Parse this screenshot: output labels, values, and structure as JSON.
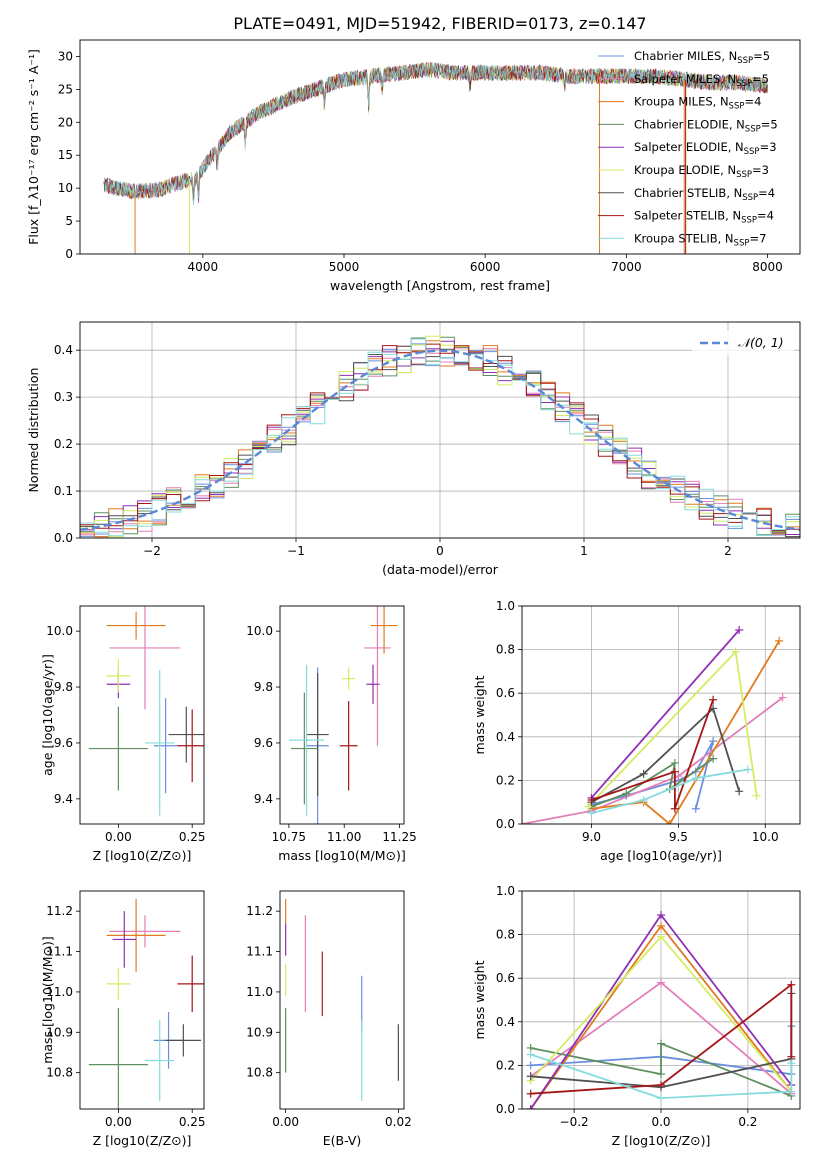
{
  "figure_title": "PLATE=0491, MJD=51942, FIBERID=0173, z=0.147",
  "colors": {
    "Chabrier MILES": "#6a8fdc",
    "Salpeter MILES": "#e37fb8",
    "Kroupa MILES": "#e07b1f",
    "Chabrier ELODIE": "#5f8f5f",
    "Salpeter ELODIE": "#8f2fb5",
    "Kroupa ELODIE": "#d5ec62",
    "Chabrier STELIB": "#505050",
    "Salpeter STELIB": "#a51616",
    "Kroupa STELIB": "#86dcdc"
  },
  "chart_data": [
    {
      "id": "spectrum",
      "type": "line",
      "title": "PLATE=0491, MJD=51942, FIBERID=0173, z=0.147",
      "xlabel": "wavelength [Angstrom, rest frame]",
      "ylabel": "Flux [f_λ10⁻¹⁷ erg cm⁻² s⁻¹ A⁻¹]",
      "xlim": [
        3130,
        8230
      ],
      "ylim": [
        0,
        32.5
      ],
      "xticks": [
        4000,
        5000,
        6000,
        7000,
        8000
      ],
      "yticks": [
        0,
        5,
        10,
        15,
        20,
        25,
        30
      ],
      "grid": false,
      "legend": "top-right",
      "continuum": [
        [
          3300,
          10.5
        ],
        [
          3500,
          9.5
        ],
        [
          3700,
          9.8
        ],
        [
          3850,
          11.0
        ],
        [
          3950,
          11.5
        ],
        [
          4050,
          14.5
        ],
        [
          4200,
          18.5
        ],
        [
          4400,
          21.5
        ],
        [
          4600,
          23.5
        ],
        [
          4800,
          25.0
        ],
        [
          5000,
          26.5
        ],
        [
          5200,
          27.0
        ],
        [
          5400,
          27.5
        ],
        [
          5600,
          28.0
        ],
        [
          5800,
          27.5
        ],
        [
          6000,
          27.5
        ],
        [
          6200,
          27.5
        ],
        [
          6400,
          27.5
        ],
        [
          6600,
          27.0
        ],
        [
          6800,
          27.0
        ],
        [
          7000,
          27.0
        ],
        [
          7200,
          27.0
        ],
        [
          7400,
          26.5
        ],
        [
          7600,
          26.0
        ],
        [
          7800,
          26.0
        ],
        [
          8000,
          25.5
        ]
      ],
      "absorption_lines": [
        [
          3934,
          0.72
        ],
        [
          3969,
          0.72
        ],
        [
          4102,
          0.82
        ],
        [
          4300,
          0.85
        ],
        [
          4861,
          0.9
        ],
        [
          5175,
          0.82
        ],
        [
          5270,
          0.92
        ],
        [
          5893,
          0.92
        ],
        [
          6563,
          0.93
        ]
      ],
      "series": [
        {
          "name": "Chabrier MILES",
          "label": "Chabrier MILES, N",
          "sub": "SSP",
          "suffix": "=5"
        },
        {
          "name": "Salpeter MILES",
          "label": "Salpeter MILES, N",
          "sub": "SSP",
          "suffix": "=5"
        },
        {
          "name": "Kroupa MILES",
          "label": "Kroupa MILES, N",
          "sub": "SSP",
          "suffix": "=4"
        },
        {
          "name": "Chabrier ELODIE",
          "label": "Chabrier ELODIE, N",
          "sub": "SSP",
          "suffix": "=5"
        },
        {
          "name": "Salpeter ELODIE",
          "label": "Salpeter ELODIE, N",
          "sub": "SSP",
          "suffix": "=3"
        },
        {
          "name": "Kroupa ELODIE",
          "label": "Kroupa ELODIE, N",
          "sub": "SSP",
          "suffix": "=3"
        },
        {
          "name": "Chabrier STELIB",
          "label": "Chabrier STELIB, N",
          "sub": "SSP",
          "suffix": "=4"
        },
        {
          "name": "Salpeter STELIB",
          "label": "Salpeter STELIB, N",
          "sub": "SSP",
          "suffix": "=4"
        },
        {
          "name": "Kroupa STELIB",
          "label": "Kroupa STELIB, N",
          "sub": "SSP",
          "suffix": "=7"
        }
      ],
      "drops": [
        {
          "name": "Kroupa MILES",
          "x": 3520
        },
        {
          "name": "Kroupa ELODIE",
          "x": 3905
        },
        {
          "name": "Kroupa MILES",
          "x": 6810
        },
        {
          "name": "Kroupa MILES",
          "x": 7410
        },
        {
          "name": "Salpeter STELIB",
          "x": 7420
        }
      ]
    },
    {
      "id": "residuals",
      "type": "step-histogram",
      "xlabel": "(data-model)/error",
      "ylabel": "Normed distribution",
      "xlim": [
        -2.5,
        2.5
      ],
      "ylim": [
        0,
        0.46
      ],
      "xticks": [
        -2,
        -1,
        0,
        1,
        2
      ],
      "yticks": [
        0.0,
        0.1,
        0.2,
        0.3,
        0.4
      ],
      "grid": true,
      "legend": "top-right",
      "bin_width": 0.1,
      "reference": {
        "label": "𝒩(0, 1)",
        "color": "#5a87d6",
        "mean": 0,
        "sigma": 1
      },
      "series_names": [
        "Chabrier MILES",
        "Salpeter MILES",
        "Kroupa MILES",
        "Chabrier ELODIE",
        "Salpeter ELODIE",
        "Kroupa ELODIE",
        "Chabrier STELIB",
        "Salpeter STELIB",
        "Kroupa STELIB"
      ]
    },
    {
      "id": "age-vs-z",
      "type": "errorbar",
      "xlabel": "Z [log10(Z/Z⊙)]",
      "ylabel": "age  [log10(age/yr)]",
      "xlim": [
        -0.13,
        0.29
      ],
      "ylim": [
        9.31,
        10.09
      ],
      "xticks": [
        0.0,
        0.25
      ],
      "yticks": [
        9.4,
        9.6,
        9.8,
        10.0
      ],
      "points": [
        {
          "name": "Chabrier MILES",
          "x": 0.16,
          "xerr": 0.04,
          "y": 9.59,
          "yerr": 0.17
        },
        {
          "name": "Salpeter MILES",
          "x": 0.09,
          "xerr": 0.12,
          "y": 9.94,
          "yerr": 0.22
        },
        {
          "name": "Kroupa MILES",
          "x": 0.06,
          "xerr": 0.1,
          "y": 10.02,
          "yerr": 0.05
        },
        {
          "name": "Chabrier ELODIE",
          "x": 0.0,
          "xerr": 0.1,
          "y": 9.58,
          "yerr": 0.15
        },
        {
          "name": "Salpeter ELODIE",
          "x": 0.0,
          "xerr": 0.04,
          "y": 9.81,
          "yerr": 0.05
        },
        {
          "name": "Kroupa ELODIE",
          "x": 0.0,
          "xerr": 0.04,
          "y": 9.84,
          "yerr": 0.06
        },
        {
          "name": "Chabrier STELIB",
          "x": 0.23,
          "xerr": 0.06,
          "y": 9.63,
          "yerr": 0.1
        },
        {
          "name": "Salpeter STELIB",
          "x": 0.25,
          "xerr": 0.05,
          "y": 9.59,
          "yerr": 0.13
        },
        {
          "name": "Kroupa STELIB",
          "x": 0.14,
          "xerr": 0.05,
          "y": 9.6,
          "yerr": 0.26
        }
      ]
    },
    {
      "id": "age-vs-mass",
      "type": "errorbar",
      "xlabel": "mass [log10(M/M⊙)]",
      "ylabel": "",
      "xlim": [
        10.71,
        11.27
      ],
      "ylim": [
        9.31,
        10.09
      ],
      "xticks": [
        10.75,
        11.0,
        11.25
      ],
      "yticks": [
        9.4,
        9.6,
        9.8,
        10.0
      ],
      "points": [
        {
          "name": "Chabrier MILES",
          "x": 10.88,
          "xerr": 0.05,
          "y": 9.59,
          "yerr": 0.28
        },
        {
          "name": "Salpeter MILES",
          "x": 11.15,
          "xerr": 0.06,
          "y": 9.94,
          "yerr": 0.35
        },
        {
          "name": "Kroupa MILES",
          "x": 11.18,
          "xerr": 0.06,
          "y": 10.02,
          "yerr": 0.1
        },
        {
          "name": "Chabrier ELODIE",
          "x": 10.82,
          "xerr": 0.06,
          "y": 9.58,
          "yerr": 0.2
        },
        {
          "name": "Salpeter ELODIE",
          "x": 11.13,
          "xerr": 0.03,
          "y": 9.81,
          "yerr": 0.07
        },
        {
          "name": "Kroupa ELODIE",
          "x": 11.02,
          "xerr": 0.03,
          "y": 9.83,
          "yerr": 0.04
        },
        {
          "name": "Chabrier STELIB",
          "x": 10.88,
          "xerr": 0.05,
          "y": 9.63,
          "yerr": 0.22
        },
        {
          "name": "Salpeter STELIB",
          "x": 11.02,
          "xerr": 0.04,
          "y": 9.59,
          "yerr": 0.16
        },
        {
          "name": "Kroupa STELIB",
          "x": 10.83,
          "xerr": 0.08,
          "y": 9.61,
          "yerr": 0.27
        }
      ]
    },
    {
      "id": "weight-vs-age",
      "type": "line",
      "xlabel": "age  [log10(age/yr)]",
      "ylabel": "mass weight",
      "xlim": [
        8.6,
        10.2
      ],
      "ylim": [
        0,
        1.0
      ],
      "xticks": [
        9.0,
        9.5,
        10.0
      ],
      "yticks": [
        0.0,
        0.2,
        0.4,
        0.6,
        0.8,
        1.0
      ],
      "grid": true,
      "series": [
        {
          "name": "Chabrier MILES",
          "points": [
            [
              9.0,
              0.09
            ],
            [
              9.2,
              0.13
            ],
            [
              9.5,
              0.2
            ],
            [
              9.6,
              0.24
            ],
            [
              9.7,
              0.38
            ],
            [
              9.6,
              0.07
            ]
          ]
        },
        {
          "name": "Salpeter MILES",
          "points": [
            [
              8.6,
              0.0
            ],
            [
              9.0,
              0.06
            ],
            [
              9.5,
              0.22
            ],
            [
              10.1,
              0.58
            ]
          ]
        },
        {
          "name": "Kroupa MILES",
          "points": [
            [
              9.0,
              0.07
            ],
            [
              9.3,
              0.1
            ],
            [
              9.45,
              0.0
            ],
            [
              10.08,
              0.84
            ]
          ]
        },
        {
          "name": "Chabrier ELODIE",
          "points": [
            [
              9.0,
              0.08
            ],
            [
              9.2,
              0.14
            ],
            [
              9.48,
              0.28
            ],
            [
              9.45,
              0.16
            ],
            [
              9.7,
              0.3
            ]
          ]
        },
        {
          "name": "Salpeter ELODIE",
          "points": [
            [
              9.0,
              0.12
            ],
            [
              9.85,
              0.89
            ]
          ]
        },
        {
          "name": "Kroupa ELODIE",
          "points": [
            [
              8.98,
              0.08
            ],
            [
              9.83,
              0.79
            ],
            [
              9.95,
              0.13
            ]
          ]
        },
        {
          "name": "Chabrier STELIB",
          "points": [
            [
              9.0,
              0.1
            ],
            [
              9.3,
              0.23
            ],
            [
              9.7,
              0.53
            ],
            [
              9.85,
              0.15
            ]
          ]
        },
        {
          "name": "Salpeter STELIB",
          "points": [
            [
              9.0,
              0.11
            ],
            [
              9.48,
              0.24
            ],
            [
              9.48,
              0.07
            ],
            [
              9.7,
              0.57
            ]
          ]
        },
        {
          "name": "Kroupa STELIB",
          "points": [
            [
              9.0,
              0.05
            ],
            [
              9.3,
              0.11
            ],
            [
              9.6,
              0.21
            ],
            [
              9.9,
              0.25
            ]
          ]
        }
      ]
    },
    {
      "id": "mass-vs-z",
      "type": "errorbar",
      "xlabel": "Z [log10(Z/Z⊙)]",
      "ylabel": "mass [log10(M/M⊙)]",
      "xlim": [
        -0.13,
        0.29
      ],
      "ylim": [
        10.71,
        11.25
      ],
      "xticks": [
        0.0,
        0.25
      ],
      "yticks": [
        10.8,
        10.9,
        11.0,
        11.1,
        11.2
      ],
      "points": [
        {
          "name": "Chabrier MILES",
          "x": 0.17,
          "xerr": 0.05,
          "y": 10.88,
          "yerr": 0.07
        },
        {
          "name": "Salpeter MILES",
          "x": 0.09,
          "xerr": 0.12,
          "y": 11.15,
          "yerr": 0.04
        },
        {
          "name": "Kroupa MILES",
          "x": 0.06,
          "xerr": 0.1,
          "y": 11.14,
          "yerr": 0.09
        },
        {
          "name": "Chabrier ELODIE",
          "x": 0.0,
          "xerr": 0.1,
          "y": 10.82,
          "yerr": 0.14
        },
        {
          "name": "Salpeter ELODIE",
          "x": 0.02,
          "xerr": 0.04,
          "y": 11.13,
          "yerr": 0.07
        },
        {
          "name": "Kroupa ELODIE",
          "x": 0.0,
          "xerr": 0.04,
          "y": 11.02,
          "yerr": 0.04
        },
        {
          "name": "Chabrier STELIB",
          "x": 0.22,
          "xerr": 0.06,
          "y": 10.88,
          "yerr": 0.04
        },
        {
          "name": "Salpeter STELIB",
          "x": 0.25,
          "xerr": 0.05,
          "y": 11.02,
          "yerr": 0.07
        },
        {
          "name": "Kroupa STELIB",
          "x": 0.14,
          "xerr": 0.05,
          "y": 10.83,
          "yerr": 0.1
        }
      ]
    },
    {
      "id": "mass-vs-ebv",
      "type": "errorbar",
      "xlabel": "E(B-V)",
      "ylabel": "",
      "xlim": [
        -0.001,
        0.021
      ],
      "ylim": [
        10.71,
        11.25
      ],
      "xticks": [
        0.0,
        0.02
      ],
      "yticks": [
        10.8,
        10.9,
        11.0,
        11.1,
        11.2
      ],
      "points": [
        {
          "name": "Chabrier MILES",
          "x": 0.0135,
          "xerr": 0,
          "y": 10.97,
          "yerr": 0.07
        },
        {
          "name": "Salpeter MILES",
          "x": 0.0035,
          "xerr": 0,
          "y": 11.07,
          "yerr": 0.12
        },
        {
          "name": "Kroupa MILES",
          "x": 0.0,
          "xerr": 0,
          "y": 11.2,
          "yerr": 0.03
        },
        {
          "name": "Chabrier ELODIE",
          "x": 0.0,
          "xerr": 0,
          "y": 10.88,
          "yerr": 0.08
        },
        {
          "name": "Salpeter ELODIE",
          "x": 0.0,
          "xerr": 0,
          "y": 11.13,
          "yerr": 0.04
        },
        {
          "name": "Kroupa ELODIE",
          "x": 0.0,
          "xerr": 0,
          "y": 11.03,
          "yerr": 0.04
        },
        {
          "name": "Chabrier STELIB",
          "x": 0.02,
          "xerr": 0,
          "y": 10.85,
          "yerr": 0.07
        },
        {
          "name": "Salpeter STELIB",
          "x": 0.0065,
          "xerr": 0,
          "y": 11.02,
          "yerr": 0.08
        },
        {
          "name": "Kroupa STELIB",
          "x": 0.0135,
          "xerr": 0,
          "y": 10.83,
          "yerr": 0.1
        }
      ]
    },
    {
      "id": "weight-vs-z",
      "type": "line",
      "xlabel": "Z [log10(Z/Z⊙)]",
      "ylabel": "mass weight",
      "xlim": [
        -0.32,
        0.32
      ],
      "ylim": [
        0,
        1.0
      ],
      "xticks": [
        -0.2,
        0.0,
        0.2
      ],
      "yticks": [
        0.0,
        0.2,
        0.4,
        0.6,
        0.8,
        1.0
      ],
      "grid": true,
      "series": [
        {
          "name": "Chabrier MILES",
          "points": [
            [
              -0.3,
              0.2
            ],
            [
              0.0,
              0.24
            ],
            [
              0.3,
              0.16
            ],
            [
              0.3,
              0.38
            ]
          ]
        },
        {
          "name": "Salpeter MILES",
          "points": [
            [
              -0.3,
              0.15
            ],
            [
              0.0,
              0.58
            ],
            [
              0.3,
              0.07
            ]
          ]
        },
        {
          "name": "Kroupa MILES",
          "points": [
            [
              -0.3,
              0.0
            ],
            [
              0.0,
              0.84
            ],
            [
              0.3,
              0.08
            ]
          ]
        },
        {
          "name": "Chabrier ELODIE",
          "points": [
            [
              -0.3,
              0.28
            ],
            [
              0.0,
              0.16
            ],
            [
              0.0,
              0.3
            ],
            [
              0.3,
              0.06
            ]
          ]
        },
        {
          "name": "Salpeter ELODIE",
          "points": [
            [
              -0.3,
              0.0
            ],
            [
              0.0,
              0.89
            ],
            [
              0.3,
              0.11
            ]
          ]
        },
        {
          "name": "Kroupa ELODIE",
          "points": [
            [
              -0.3,
              0.13
            ],
            [
              0.0,
              0.79
            ],
            [
              0.3,
              0.08
            ]
          ]
        },
        {
          "name": "Chabrier STELIB",
          "points": [
            [
              -0.3,
              0.15
            ],
            [
              0.0,
              0.1
            ],
            [
              0.3,
              0.23
            ],
            [
              0.3,
              0.53
            ]
          ]
        },
        {
          "name": "Salpeter STELIB",
          "points": [
            [
              -0.3,
              0.07
            ],
            [
              0.0,
              0.11
            ],
            [
              0.3,
              0.57
            ],
            [
              0.3,
              0.24
            ]
          ]
        },
        {
          "name": "Kroupa STELIB",
          "points": [
            [
              -0.3,
              0.25
            ],
            [
              0.0,
              0.05
            ],
            [
              0.3,
              0.08
            ],
            [
              0.3,
              0.21
            ]
          ]
        }
      ]
    }
  ]
}
